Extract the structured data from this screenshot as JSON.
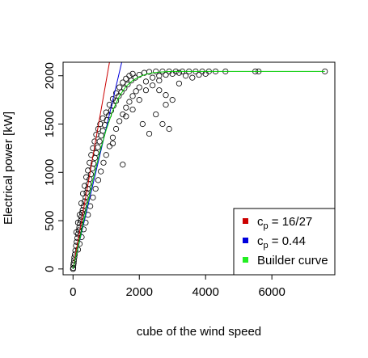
{
  "chart_data": {
    "type": "scatter",
    "title": "",
    "xlabel": "cube of the wind speed",
    "ylabel": "Electrical power [kW]",
    "xlim": [
      -300,
      7900
    ],
    "ylim": [
      -60,
      2140
    ],
    "x_ticks": [
      0,
      2000,
      4000,
      6000
    ],
    "x_tick_labels": [
      "0",
      "2000",
      "4000",
      "6000"
    ],
    "y_ticks": [
      0,
      500,
      1000,
      1500,
      2000
    ],
    "y_tick_labels": [
      "0",
      "500",
      "1000",
      "1500",
      "2000"
    ],
    "grid": false,
    "legend_position": "bottom-right",
    "series": [
      {
        "kind": "points",
        "marker": "open-circle",
        "color": "#000000",
        "note_points": "dense cloud of observations; representative sampled values",
        "points": [
          [
            0,
            0
          ],
          [
            5,
            10
          ],
          [
            10,
            40
          ],
          [
            20,
            60
          ],
          [
            30,
            90
          ],
          [
            40,
            120
          ],
          [
            55,
            150
          ],
          [
            70,
            190
          ],
          [
            90,
            240
          ],
          [
            110,
            280
          ],
          [
            130,
            320
          ],
          [
            150,
            360
          ],
          [
            170,
            400
          ],
          [
            190,
            430
          ],
          [
            210,
            470
          ],
          [
            230,
            500
          ],
          [
            250,
            540
          ],
          [
            270,
            580
          ],
          [
            290,
            610
          ],
          [
            320,
            650
          ],
          [
            350,
            700
          ],
          [
            380,
            740
          ],
          [
            410,
            790
          ],
          [
            440,
            830
          ],
          [
            470,
            880
          ],
          [
            500,
            930
          ],
          [
            540,
            980
          ],
          [
            580,
            1040
          ],
          [
            620,
            1090
          ],
          [
            660,
            1150
          ],
          [
            700,
            1200
          ],
          [
            750,
            1260
          ],
          [
            800,
            1320
          ],
          [
            850,
            1380
          ],
          [
            900,
            1430
          ],
          [
            960,
            1490
          ],
          [
            1020,
            1540
          ],
          [
            1080,
            1590
          ],
          [
            1150,
            1640
          ],
          [
            1220,
            1690
          ],
          [
            1300,
            1740
          ],
          [
            1380,
            1790
          ],
          [
            1460,
            1830
          ],
          [
            1550,
            1870
          ],
          [
            1650,
            1910
          ],
          [
            1760,
            1950
          ],
          [
            1880,
            1980
          ],
          [
            2000,
            2010
          ],
          [
            2150,
            2030
          ],
          [
            2300,
            2040
          ],
          [
            2500,
            2045
          ],
          [
            2700,
            2045
          ],
          [
            2900,
            2045
          ],
          [
            3100,
            2045
          ],
          [
            3300,
            2045
          ],
          [
            3500,
            2045
          ],
          [
            3700,
            2045
          ],
          [
            3900,
            2045
          ],
          [
            4100,
            2045
          ],
          [
            4300,
            2045
          ],
          [
            4600,
            2045
          ],
          [
            5500,
            2045
          ],
          [
            5600,
            2045
          ],
          [
            7600,
            2045
          ],
          [
            150,
            200
          ],
          [
            200,
            260
          ],
          [
            260,
            330
          ],
          [
            320,
            410
          ],
          [
            380,
            480
          ],
          [
            450,
            560
          ],
          [
            520,
            650
          ],
          [
            600,
            740
          ],
          [
            680,
            830
          ],
          [
            760,
            920
          ],
          [
            840,
            1010
          ],
          [
            920,
            1100
          ],
          [
            1000,
            1180
          ],
          [
            1100,
            1270
          ],
          [
            1200,
            1360
          ],
          [
            1300,
            1450
          ],
          [
            1400,
            1530
          ],
          [
            1500,
            1600
          ],
          [
            1600,
            1670
          ],
          [
            1700,
            1730
          ],
          [
            1800,
            1790
          ],
          [
            1900,
            1840
          ],
          [
            2000,
            1880
          ],
          [
            2200,
            1940
          ],
          [
            2400,
            1980
          ],
          [
            2600,
            2000
          ],
          [
            2800,
            2010
          ],
          [
            3000,
            2020
          ],
          [
            3200,
            2030
          ],
          [
            100,
            380
          ],
          [
            150,
            480
          ],
          [
            200,
            560
          ],
          [
            250,
            680
          ],
          [
            300,
            780
          ],
          [
            350,
            860
          ],
          [
            400,
            950
          ],
          [
            450,
            1020
          ],
          [
            500,
            1100
          ],
          [
            550,
            1180
          ],
          [
            600,
            1250
          ],
          [
            650,
            1320
          ],
          [
            700,
            1390
          ],
          [
            760,
            1450
          ],
          [
            820,
            1500
          ],
          [
            900,
            1560
          ],
          [
            1000,
            1620
          ],
          [
            1100,
            1700
          ],
          [
            1200,
            1760
          ],
          [
            1300,
            1820
          ],
          [
            1400,
            1880
          ],
          [
            1500,
            1930
          ],
          [
            1600,
            1970
          ],
          [
            1700,
            2000
          ],
          [
            1800,
            2020
          ],
          [
            2400,
            1900
          ],
          [
            2600,
            1850
          ],
          [
            2800,
            1800
          ],
          [
            3000,
            1750
          ],
          [
            2200,
            1850
          ],
          [
            2000,
            1750
          ],
          [
            1800,
            1650
          ],
          [
            2500,
            1600
          ],
          [
            2700,
            1500
          ],
          [
            2900,
            1450
          ],
          [
            2100,
            1500
          ],
          [
            2300,
            1400
          ],
          [
            1500,
            1080
          ],
          [
            1200,
            1300
          ],
          [
            1600,
            1580
          ],
          [
            3400,
            2000
          ],
          [
            3600,
            1980
          ],
          [
            3800,
            2010
          ],
          [
            4000,
            2020
          ],
          [
            3200,
            1920
          ],
          [
            2600,
            1950
          ],
          [
            2800,
            1700
          ]
        ]
      },
      {
        "name": "c_p = 16/27",
        "kind": "line",
        "color": "#cc0000",
        "x": [
          0,
          1100
        ],
        "y": [
          0,
          2140
        ]
      },
      {
        "name": "c_p = 0.44",
        "kind": "line",
        "color": "#0000dd",
        "x": [
          0,
          1470
        ],
        "y": [
          0,
          2140
        ]
      },
      {
        "name": "Builder curve",
        "kind": "line",
        "color": "#00cc00",
        "x": [
          0,
          200,
          400,
          600,
          800,
          1000,
          1200,
          1400,
          1600,
          1800,
          2000,
          2200,
          2400,
          2600,
          2800,
          3000,
          3500,
          4000,
          5000,
          6000,
          7600
        ],
        "y": [
          0,
          300,
          620,
          920,
          1200,
          1440,
          1640,
          1790,
          1890,
          1950,
          1990,
          2015,
          2030,
          2038,
          2042,
          2045,
          2045,
          2045,
          2045,
          2045,
          2045
        ]
      }
    ],
    "legend": [
      {
        "symbol": "c",
        "subscript": "p",
        "value": " = 16/27",
        "color": "#cc0000"
      },
      {
        "symbol": "c",
        "subscript": "p",
        "value": " = 0.44",
        "color": "#0000dd"
      },
      {
        "symbol": "",
        "subscript": "",
        "value": "Builder curve",
        "color": "#22ee22"
      }
    ]
  }
}
